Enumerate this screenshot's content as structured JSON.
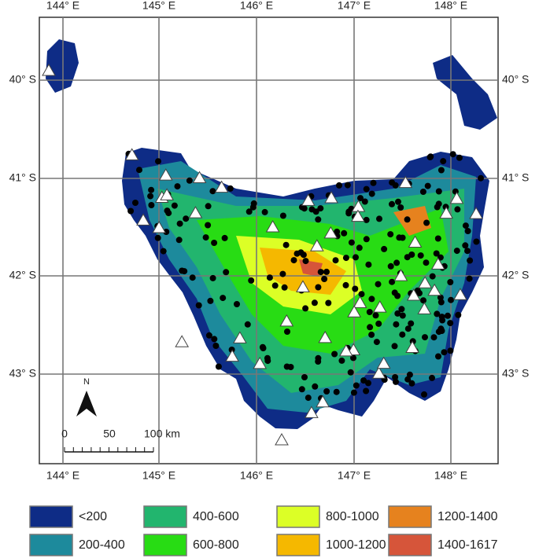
{
  "map": {
    "lon_labels": [
      "144° E",
      "145° E",
      "146° E",
      "147° E",
      "148° E"
    ],
    "lat_labels": [
      "40° S",
      "41° S",
      "42° S",
      "43° S"
    ],
    "north": "N",
    "scale": [
      "0",
      "50",
      "100 km"
    ],
    "legend": [
      {
        "label": "<200",
        "color": "#0e2c86"
      },
      {
        "label": "200-400",
        "color": "#1d8a9c"
      },
      {
        "label": "400-600",
        "color": "#22b56e"
      },
      {
        "label": "600-800",
        "color": "#28dc14"
      },
      {
        "label": "800-1000",
        "color": "#dcff26"
      },
      {
        "label": "1000-1200",
        "color": "#f5b800"
      },
      {
        "label": "1200-1400",
        "color": "#e6821e"
      },
      {
        "label": "1400-1617",
        "color": "#d6553a"
      }
    ]
  }
}
